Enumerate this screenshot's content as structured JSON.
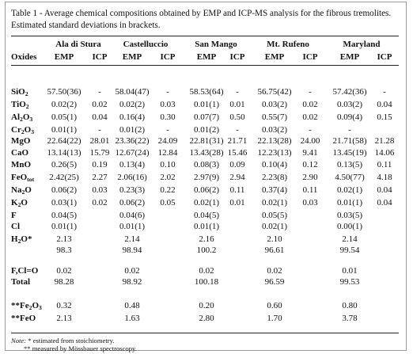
{
  "caption": "Table 1 - Average chemical compositions obtained by EMP and ICP-MS analysis for the fibrous tremolites. Estimated standard deviations in brackets.",
  "header": {
    "oxides_label": "Oxides",
    "sites": [
      "Ala di Stura",
      "Castelluccio",
      "San Mango",
      "Mt. Rufeno",
      "Maryland"
    ],
    "methods": [
      "EMP",
      "ICP"
    ]
  },
  "rows": [
    {
      "label": "SiO2",
      "values": [
        "57.50(36)",
        "-",
        "58.04(47)",
        "-",
        "58.53(64)",
        "-",
        "56.75(42)",
        "-",
        "57.42(36)",
        "-"
      ]
    },
    {
      "label": "TiO2",
      "values": [
        "0.02(2)",
        "0.02",
        "0.02(2)",
        "0.03",
        "0.01(1)",
        "0.01",
        "0.03(2)",
        "0.02",
        "0.03(2)",
        "0.04"
      ]
    },
    {
      "label": "Al2O3",
      "values": [
        "0.05(1)",
        "0.04",
        "0.16(4)",
        "0.30",
        "0.07(7)",
        "0.50",
        "0.55(7)",
        "0.02",
        "0.09(4)",
        "0.15"
      ]
    },
    {
      "label": "Cr2O3",
      "values": [
        "0.01(1)",
        "-",
        "0.01(2)",
        "-",
        "0.01(2)",
        "-",
        "0.03(2)",
        "-",
        "-",
        ""
      ]
    },
    {
      "label": "MgO",
      "values": [
        "22.64(22)",
        "28.01",
        "23.36(22)",
        "24.09",
        "22.81(31)",
        "21.71",
        "22.13(28)",
        "24.00",
        "21.71(58)",
        "21.28"
      ]
    },
    {
      "label": "CaO",
      "values": [
        "13.14(13)",
        "15.79",
        "12.67(24)",
        "12.84",
        "13.43(28)",
        "15.46",
        "12.23(13)",
        "9.41",
        "13.45(19)",
        "14.06"
      ]
    },
    {
      "label": "MnO",
      "values": [
        "0.26(5)",
        "0.19",
        "0.13(4)",
        "0.10",
        "0.08(3)",
        "0.09",
        "0.10(4)",
        "0.12",
        "0.13(5)",
        "0.11"
      ]
    },
    {
      "label": "FeOtot",
      "values": [
        "2.42(25)",
        "2.27",
        "2.06(16)",
        "2.02",
        "2.97(9)",
        "2.94",
        "2.23(8)",
        "2.90",
        "4.50(77)",
        "4.18"
      ]
    },
    {
      "label": "Na2O",
      "values": [
        "0.06(2)",
        "0.03",
        "0.23(3)",
        "0.22",
        "0.06(2)",
        "0.11",
        "0.37(4)",
        "0.11",
        "0.02(1)",
        "0.04"
      ]
    },
    {
      "label": "K2O",
      "values": [
        "0.03(1)",
        "0.02",
        "0.06(2)",
        "0.05",
        "0.02(1)",
        "0.01",
        "0.02(1)",
        "0.03",
        "0.01(1)",
        "0.04"
      ]
    },
    {
      "label": "F",
      "values": [
        "0.04(5)",
        "",
        "0.04(6)",
        "",
        "0.04(5)",
        "",
        "0.05(5)",
        "",
        "0.03(5)",
        ""
      ]
    },
    {
      "label": "Cl",
      "values": [
        "0.01(1)",
        "",
        "0.01(1)",
        "",
        "0.01(1)",
        "",
        "0.02(1)",
        "",
        "0.00(1)",
        ""
      ]
    },
    {
      "label": "H2O*",
      "values": [
        "2.13",
        "",
        "2.14",
        "",
        "2.16",
        "",
        "2.10",
        "",
        "2.14",
        ""
      ]
    },
    {
      "label": "",
      "values": [
        "98.3",
        "",
        "98.94",
        "",
        "100.2",
        "",
        "96.61",
        "",
        "99.54",
        ""
      ]
    },
    {
      "label": "F,Cl=O",
      "values": [
        "0.02",
        "",
        "0.02",
        "",
        "0.02",
        "",
        "0.02",
        "",
        "0.01",
        ""
      ]
    },
    {
      "label": "Total",
      "values": [
        "98.28",
        "",
        "98.92",
        "",
        "100.18",
        "",
        "96.59",
        "",
        "99.53",
        ""
      ]
    },
    {
      "label": "**Fe2O3",
      "values": [
        "0.32",
        "",
        "0.48",
        "",
        "0.20",
        "",
        "0.60",
        "",
        "0.80",
        ""
      ]
    },
    {
      "label": "**FeO",
      "values": [
        "2.13",
        "",
        "1.63",
        "",
        "2.80",
        "",
        "1.70",
        "",
        "3.78",
        ""
      ]
    }
  ],
  "notes": {
    "note1_prefix": "Note:",
    "note1_text": "* estimated from stoichiometry.",
    "note2": "** measured by Mössbauer spectroscopy."
  }
}
